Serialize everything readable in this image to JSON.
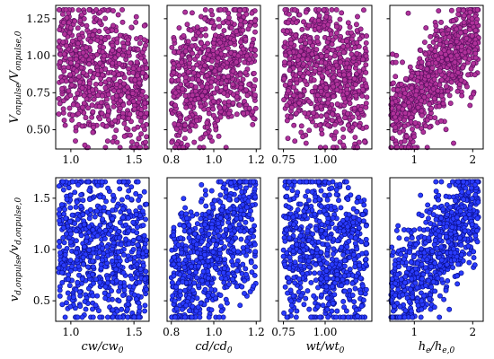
{
  "chart_data": {
    "type": "scatter",
    "layout": "2x4 grid",
    "grid": false,
    "rows": [
      {
        "ylabel_main": "V",
        "ylabel_main_sub": "onpulse",
        "ylabel_den": "V",
        "ylabel_den_sub": "onpulse,0",
        "ylim": [
          0.37,
          1.34
        ],
        "yticks": [
          0.5,
          0.75,
          1.0,
          1.25
        ],
        "ytick_labels": [
          "0.50",
          "0.75",
          "1.00",
          "1.25"
        ],
        "marker_fill": "#b0329a",
        "marker_edge": "#5a1060",
        "points_per_panel": 700
      },
      {
        "ylabel_main": "v",
        "ylabel_main_sub": "d,onpulse",
        "ylabel_den": "v",
        "ylabel_den_sub": "d,onpulse,0",
        "ylim": [
          0.3,
          1.7
        ],
        "yticks": [
          0.5,
          1.0,
          1.5
        ],
        "ytick_labels": [
          "0.5",
          "1.0",
          "1.5"
        ],
        "marker_fill": "#2a3cff",
        "marker_edge": "#0a1090",
        "points_per_panel": 700
      }
    ],
    "columns": [
      {
        "xlabel_num": "cw",
        "xlabel_den": "cw",
        "xlabel_den_sub": "0",
        "xlim": [
          0.88,
          1.62
        ],
        "xdata_range": [
          0.9,
          1.6
        ],
        "xticks": [
          1.0,
          1.5
        ],
        "xtick_labels": [
          "1.0",
          "1.5"
        ],
        "slope_row1": -0.28,
        "slope_row2": -0.15
      },
      {
        "xlabel_num": "cd",
        "xlabel_den": "cd",
        "xlabel_den_sub": "0",
        "xlim": [
          0.78,
          1.22
        ],
        "xdata_range": [
          0.8,
          1.2
        ],
        "xticks": [
          0.8,
          1.0,
          1.2
        ],
        "xtick_labels": [
          "0.8",
          "1.0",
          "1.2"
        ],
        "slope_row1": 0.62,
        "slope_row2": 1.65
      },
      {
        "xlabel_num": "wt",
        "xlabel_den": "wt",
        "xlabel_den_sub": "0",
        "xlim": [
          0.72,
          1.28
        ],
        "xdata_range": [
          0.75,
          1.25
        ],
        "xticks": [
          0.75,
          1.0
        ],
        "xtick_labels": [
          "0.75",
          "1.00"
        ],
        "slope_row1": -0.3,
        "slope_row2": -0.35
      },
      {
        "xlabel_num": "h",
        "xlabel_num_sub": "e",
        "xlabel_den": "h",
        "xlabel_den_sub": "e,0",
        "xlim": [
          0.58,
          2.18
        ],
        "xdata_range": [
          0.6,
          2.1
        ],
        "xticks": [
          1,
          2
        ],
        "xtick_labels": [
          "1",
          "2"
        ],
        "slope_row1": 0.42,
        "slope_row2": 0.62
      }
    ]
  }
}
